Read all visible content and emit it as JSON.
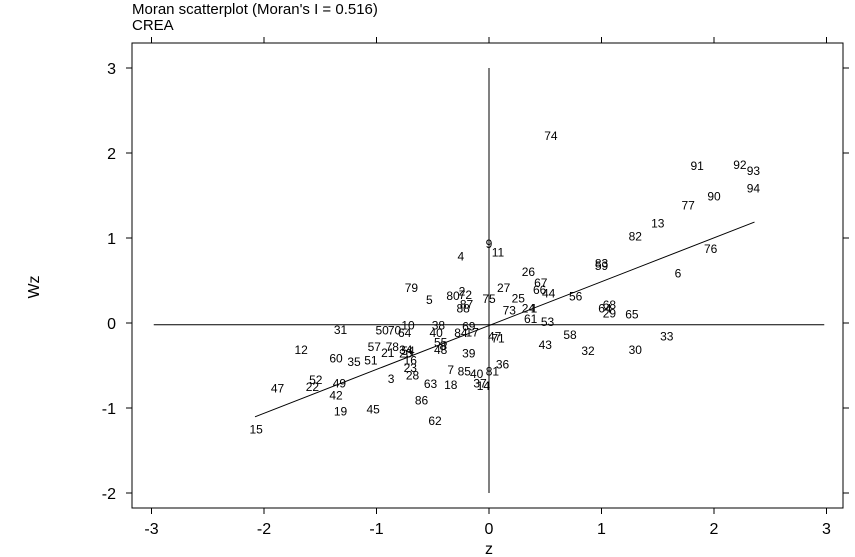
{
  "chart_data": {
    "type": "scatter",
    "title": "Moran scatterplot (Moran's I = 0.516)",
    "subtitle": "CREA",
    "xlabel": "z",
    "ylabel": "Wz",
    "xlim": [
      -3,
      3
    ],
    "ylim": [
      -2,
      3
    ],
    "xticks": [
      "-3",
      "-2",
      "-1",
      "0",
      "1",
      "2",
      "3"
    ],
    "yticks": [
      "-2",
      "-1",
      "0",
      "1",
      "2",
      "3"
    ],
    "grid": false,
    "regression_line": {
      "slope": 0.516,
      "intercept": -0.03,
      "x_range": [
        -2.08,
        2.36
      ]
    },
    "reference_lines": {
      "x": 0,
      "y": -0.02
    },
    "points": [
      {
        "label": "74",
        "x": 0.55,
        "y": 2.2
      },
      {
        "label": "91",
        "x": 1.85,
        "y": 1.85
      },
      {
        "label": "92",
        "x": 2.23,
        "y": 1.86
      },
      {
        "label": "93",
        "x": 2.35,
        "y": 1.79
      },
      {
        "label": "94",
        "x": 2.35,
        "y": 1.58
      },
      {
        "label": "90",
        "x": 2.0,
        "y": 1.49
      },
      {
        "label": "77",
        "x": 1.77,
        "y": 1.38
      },
      {
        "label": "13",
        "x": 1.5,
        "y": 1.17
      },
      {
        "label": "82",
        "x": 1.3,
        "y": 1.02
      },
      {
        "label": "76",
        "x": 1.97,
        "y": 0.87
      },
      {
        "label": "9",
        "x": 0.0,
        "y": 0.93
      },
      {
        "label": "11",
        "x": 0.08,
        "y": 0.83
      },
      {
        "label": "4",
        "x": -0.25,
        "y": 0.78
      },
      {
        "label": "83",
        "x": 1.0,
        "y": 0.7
      },
      {
        "label": "59",
        "x": 1.0,
        "y": 0.67
      },
      {
        "label": "6",
        "x": 1.68,
        "y": 0.58
      },
      {
        "label": "26",
        "x": 0.35,
        "y": 0.6
      },
      {
        "label": "67",
        "x": 0.46,
        "y": 0.47
      },
      {
        "label": "66",
        "x": 0.45,
        "y": 0.39
      },
      {
        "label": "44",
        "x": 0.53,
        "y": 0.35
      },
      {
        "label": "56",
        "x": 0.77,
        "y": 0.31
      },
      {
        "label": "79",
        "x": -0.69,
        "y": 0.41
      },
      {
        "label": "2",
        "x": -0.24,
        "y": 0.37
      },
      {
        "label": "80",
        "x": -0.32,
        "y": 0.32
      },
      {
        "label": "72",
        "x": -0.21,
        "y": 0.33
      },
      {
        "label": "27",
        "x": 0.13,
        "y": 0.41
      },
      {
        "label": "5",
        "x": -0.53,
        "y": 0.27
      },
      {
        "label": "75",
        "x": 0.0,
        "y": 0.28
      },
      {
        "label": "25",
        "x": 0.26,
        "y": 0.29
      },
      {
        "label": "87",
        "x": -0.2,
        "y": 0.22
      },
      {
        "label": "88",
        "x": -0.23,
        "y": 0.17
      },
      {
        "label": "73",
        "x": 0.18,
        "y": 0.15
      },
      {
        "label": "24",
        "x": 0.35,
        "y": 0.17
      },
      {
        "label": "1",
        "x": 0.4,
        "y": 0.17
      },
      {
        "label": "68",
        "x": 1.07,
        "y": 0.21
      },
      {
        "label": "64",
        "x": 1.03,
        "y": 0.17
      },
      {
        "label": "29",
        "x": 1.07,
        "y": 0.11
      },
      {
        "label": "65",
        "x": 1.27,
        "y": 0.1
      },
      {
        "label": "61",
        "x": 0.37,
        "y": 0.05
      },
      {
        "label": "53",
        "x": 0.52,
        "y": 0.01
      },
      {
        "label": "31",
        "x": -1.32,
        "y": -0.08
      },
      {
        "label": "50",
        "x": -0.95,
        "y": -0.09
      },
      {
        "label": "70",
        "x": -0.84,
        "y": -0.09
      },
      {
        "label": "10",
        "x": -0.72,
        "y": -0.03
      },
      {
        "label": "64",
        "x": -0.75,
        "y": -0.12
      },
      {
        "label": "38",
        "x": -0.45,
        "y": -0.03
      },
      {
        "label": "69",
        "x": -0.18,
        "y": -0.04
      },
      {
        "label": "40",
        "x": -0.47,
        "y": -0.12
      },
      {
        "label": "84",
        "x": -0.25,
        "y": -0.12
      },
      {
        "label": "17",
        "x": -0.15,
        "y": -0.11
      },
      {
        "label": "47",
        "x": 0.05,
        "y": -0.16
      },
      {
        "label": "71",
        "x": 0.08,
        "y": -0.18
      },
      {
        "label": "58",
        "x": 0.72,
        "y": -0.14
      },
      {
        "label": "33",
        "x": 1.58,
        "y": -0.16
      },
      {
        "label": "55",
        "x": -0.43,
        "y": -0.23
      },
      {
        "label": "8",
        "x": -0.41,
        "y": -0.27
      },
      {
        "label": "48",
        "x": -0.43,
        "y": -0.32
      },
      {
        "label": "43",
        "x": 0.5,
        "y": -0.26
      },
      {
        "label": "32",
        "x": 0.88,
        "y": -0.33
      },
      {
        "label": "30",
        "x": 1.3,
        "y": -0.32
      },
      {
        "label": "12",
        "x": -1.67,
        "y": -0.32
      },
      {
        "label": "57",
        "x": -1.02,
        "y": -0.28
      },
      {
        "label": "78",
        "x": -0.86,
        "y": -0.28
      },
      {
        "label": "34",
        "x": -0.74,
        "y": -0.32
      },
      {
        "label": "54",
        "x": -0.72,
        "y": -0.33
      },
      {
        "label": "20",
        "x": -0.74,
        "y": -0.36
      },
      {
        "label": "39",
        "x": -0.18,
        "y": -0.36
      },
      {
        "label": "21",
        "x": -0.9,
        "y": -0.35
      },
      {
        "label": "60",
        "x": -1.36,
        "y": -0.42
      },
      {
        "label": "35",
        "x": -1.2,
        "y": -0.46
      },
      {
        "label": "51",
        "x": -1.05,
        "y": -0.44
      },
      {
        "label": "16",
        "x": -0.7,
        "y": -0.44
      },
      {
        "label": "23",
        "x": -0.7,
        "y": -0.53
      },
      {
        "label": "36",
        "x": 0.12,
        "y": -0.49
      },
      {
        "label": "7",
        "x": -0.34,
        "y": -0.55
      },
      {
        "label": "85",
        "x": -0.22,
        "y": -0.57
      },
      {
        "label": "40",
        "x": -0.11,
        "y": -0.6
      },
      {
        "label": "81",
        "x": 0.03,
        "y": -0.57
      },
      {
        "label": "28",
        "x": -0.68,
        "y": -0.62
      },
      {
        "label": "3",
        "x": -0.87,
        "y": -0.66
      },
      {
        "label": "63",
        "x": -0.52,
        "y": -0.72
      },
      {
        "label": "18",
        "x": -0.34,
        "y": -0.73
      },
      {
        "label": "37",
        "x": -0.08,
        "y": -0.71
      },
      {
        "label": "14",
        "x": -0.05,
        "y": -0.74
      },
      {
        "label": "52",
        "x": -1.54,
        "y": -0.67
      },
      {
        "label": "49",
        "x": -1.33,
        "y": -0.71
      },
      {
        "label": "22",
        "x": -1.57,
        "y": -0.75
      },
      {
        "label": "47",
        "x": -1.88,
        "y": -0.77
      },
      {
        "label": "42",
        "x": -1.36,
        "y": -0.85
      },
      {
        "label": "86",
        "x": -0.6,
        "y": -0.91
      },
      {
        "label": "19",
        "x": -1.32,
        "y": -1.04
      },
      {
        "label": "45",
        "x": -1.03,
        "y": -1.02
      },
      {
        "label": "62",
        "x": -0.48,
        "y": -1.15
      },
      {
        "label": "15",
        "x": -2.07,
        "y": -1.25
      }
    ]
  }
}
